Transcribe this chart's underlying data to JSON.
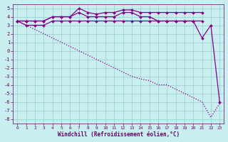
{
  "xlabel": "Windchill (Refroidissement éolien,°C)",
  "bg_color": "#c8eef0",
  "line_color": "#880088",
  "grid_color": "#99cccc",
  "xmin": 0,
  "xmax": 23,
  "ymin": -8.5,
  "ymax": 5.5,
  "yticks": [
    -8,
    -7,
    -6,
    -5,
    -4,
    -3,
    -2,
    -1,
    0,
    1,
    2,
    3,
    4,
    5
  ],
  "xticks": [
    0,
    1,
    2,
    3,
    4,
    5,
    6,
    7,
    8,
    9,
    10,
    11,
    12,
    13,
    14,
    15,
    16,
    17,
    18,
    19,
    20,
    21,
    22,
    23
  ],
  "series": {
    "s1": {
      "x": [
        0,
        1,
        2,
        3,
        4,
        5,
        6,
        7,
        8,
        9,
        10,
        11,
        12,
        13,
        14,
        15,
        16,
        17,
        18,
        19,
        20,
        21
      ],
      "y": [
        3.5,
        3.5,
        3.5,
        3.5,
        4.0,
        4.0,
        4.0,
        5.0,
        4.5,
        4.3,
        4.5,
        4.5,
        4.8,
        4.8,
        4.5,
        4.5,
        4.5,
        4.5,
        4.5,
        4.5,
        4.5,
        4.5
      ],
      "marker": true,
      "style": "-"
    },
    "s2": {
      "x": [
        0,
        1,
        2,
        3,
        4,
        5,
        6,
        7,
        8,
        9,
        10,
        11,
        12,
        13,
        14,
        15,
        16,
        17,
        18,
        19,
        20,
        21
      ],
      "y": [
        3.5,
        3.5,
        3.5,
        3.5,
        4.0,
        4.0,
        4.0,
        4.5,
        4.0,
        4.0,
        4.0,
        4.0,
        4.5,
        4.5,
        4.0,
        4.0,
        3.5,
        3.5,
        3.5,
        3.5,
        3.5,
        3.5
      ],
      "marker": true,
      "style": "-"
    },
    "s3": {
      "x": [
        0,
        1,
        2,
        3,
        4,
        5,
        6,
        7,
        8,
        9,
        10,
        11,
        12,
        13,
        14,
        15,
        16,
        17,
        18,
        19,
        20,
        21,
        22,
        23
      ],
      "y": [
        3.5,
        3.0,
        3.0,
        3.0,
        3.5,
        3.5,
        3.5,
        3.5,
        3.5,
        3.5,
        3.5,
        3.5,
        3.5,
        3.5,
        3.5,
        3.5,
        3.5,
        3.5,
        3.5,
        3.5,
        3.5,
        1.5,
        3.0,
        -6.0
      ],
      "marker": true,
      "style": "-"
    },
    "s4": {
      "x": [
        0,
        1,
        2,
        3,
        4,
        5,
        6,
        7,
        8,
        9,
        10,
        11,
        12,
        13,
        14,
        15,
        16,
        17,
        18,
        19,
        20,
        21,
        22,
        23
      ],
      "y": [
        3.5,
        3.0,
        2.5,
        2.0,
        1.5,
        1.0,
        0.5,
        0.0,
        -0.5,
        -1.0,
        -1.5,
        -2.0,
        -2.5,
        -3.0,
        -3.3,
        -3.5,
        -4.0,
        -4.0,
        -4.5,
        -5.0,
        -5.5,
        -6.0,
        -7.8,
        -6.2
      ],
      "marker": false,
      "style": ":"
    }
  }
}
